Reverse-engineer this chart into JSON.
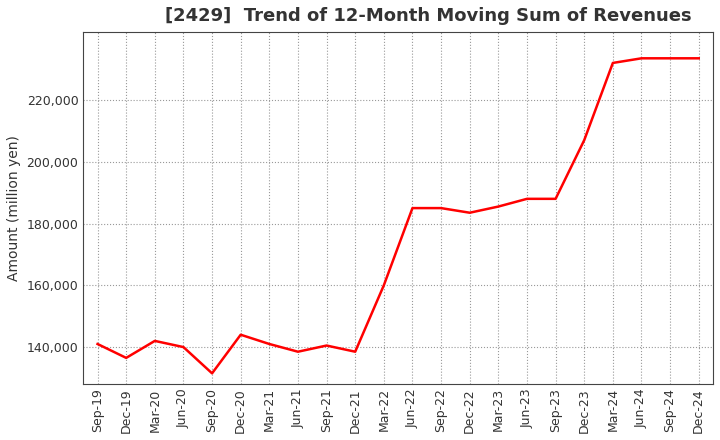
{
  "title": "[2429]  Trend of 12-Month Moving Sum of Revenues",
  "ylabel": "Amount (million yen)",
  "line_color": "#ff0000",
  "line_width": 1.8,
  "background_color": "#ffffff",
  "grid_color": "#999999",
  "title_fontsize": 13,
  "label_fontsize": 10,
  "tick_fontsize": 9,
  "ylim": [
    128000,
    242000
  ],
  "yticks": [
    140000,
    160000,
    180000,
    200000,
    220000
  ],
  "x_labels": [
    "Sep-19",
    "Dec-19",
    "Mar-20",
    "Jun-20",
    "Sep-20",
    "Dec-20",
    "Mar-21",
    "Jun-21",
    "Sep-21",
    "Dec-21",
    "Mar-22",
    "Jun-22",
    "Sep-22",
    "Dec-22",
    "Mar-23",
    "Jun-23",
    "Sep-23",
    "Dec-23",
    "Mar-24",
    "Jun-24",
    "Sep-24",
    "Dec-24"
  ],
  "values": [
    141000,
    136500,
    142000,
    140000,
    131500,
    144000,
    141000,
    138500,
    140500,
    138500,
    160000,
    185000,
    185000,
    183500,
    185500,
    188000,
    188000,
    207000,
    232000,
    233500,
    233500,
    233500
  ]
}
